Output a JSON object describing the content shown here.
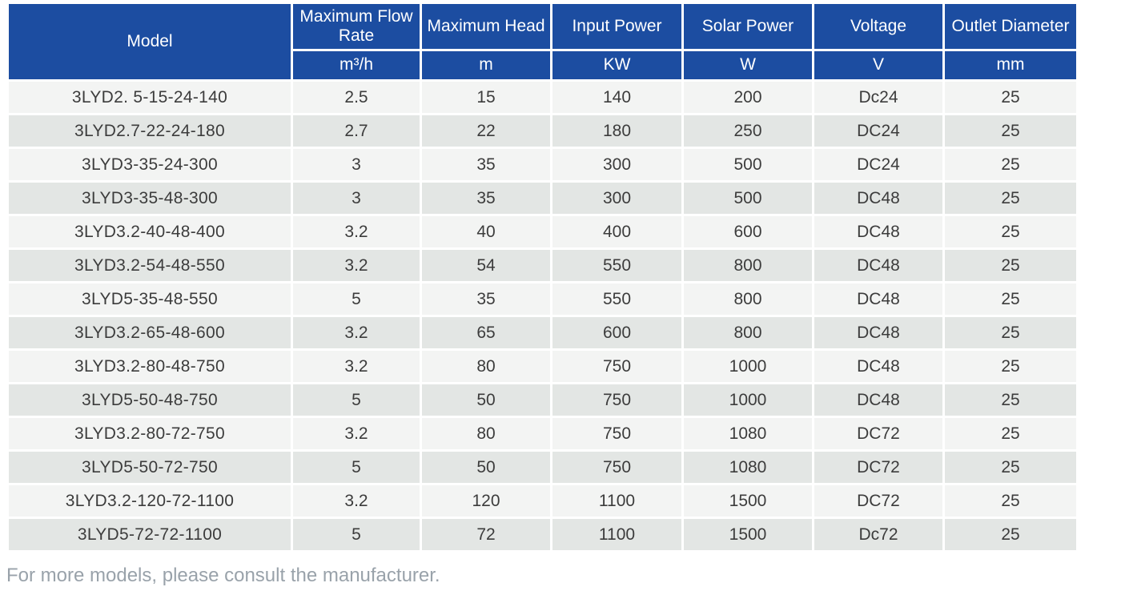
{
  "table": {
    "columns": [
      {
        "label": "Model",
        "unit": ""
      },
      {
        "label": "Maximum Flow Rate",
        "unit": "m³/h"
      },
      {
        "label": "Maximum Head",
        "unit": "m"
      },
      {
        "label": "Input Power",
        "unit": "KW"
      },
      {
        "label": "Solar Power",
        "unit": "W"
      },
      {
        "label": "Voltage",
        "unit": "V"
      },
      {
        "label": "Outlet Diameter",
        "unit": "mm"
      }
    ],
    "rows": [
      [
        "3LYD2. 5-15-24-140",
        "2.5",
        "15",
        "140",
        "200",
        "Dc24",
        "25"
      ],
      [
        "3LYD2.7-22-24-180",
        "2.7",
        "22",
        "180",
        "250",
        "DC24",
        "25"
      ],
      [
        "3LYD3-35-24-300",
        "3",
        "35",
        "300",
        "500",
        "DC24",
        "25"
      ],
      [
        "3LYD3-35-48-300",
        "3",
        "35",
        "300",
        "500",
        "DC48",
        "25"
      ],
      [
        "3LYD3.2-40-48-400",
        "3.2",
        "40",
        "400",
        "600",
        "DC48",
        "25"
      ],
      [
        "3LYD3.2-54-48-550",
        "3.2",
        "54",
        "550",
        "800",
        "DC48",
        "25"
      ],
      [
        "3LYD5-35-48-550",
        "5",
        "35",
        "550",
        "800",
        "DC48",
        "25"
      ],
      [
        "3LYD3.2-65-48-600",
        "3.2",
        "65",
        "600",
        "800",
        "DC48",
        "25"
      ],
      [
        "3LYD3.2-80-48-750",
        "3.2",
        "80",
        "750",
        "1000",
        "DC48",
        "25"
      ],
      [
        "3LYD5-50-48-750",
        "5",
        "50",
        "750",
        "1000",
        "DC48",
        "25"
      ],
      [
        "3LYD3.2-80-72-750",
        "3.2",
        "80",
        "750",
        "1080",
        "DC72",
        "25"
      ],
      [
        "3LYD5-50-72-750",
        "5",
        "50",
        "750",
        "1080",
        "DC72",
        "25"
      ],
      [
        "3LYD3.2-120-72-1100",
        "3.2",
        "120",
        "1100",
        "1500",
        "DC72",
        "25"
      ],
      [
        "3LYD5-72-72-1100",
        "5",
        "72",
        "1100",
        "1500",
        "Dc72",
        "25"
      ]
    ]
  },
  "footer": {
    "note": "For more models, please consult the manufacturer."
  },
  "colors": {
    "header_bg": "#1c4da1",
    "header_text": "#ffffff",
    "row_odd": "#f3f4f3",
    "row_even": "#e3e6e4",
    "body_text": "#3c3c3c",
    "note_text": "#99a2aa"
  }
}
